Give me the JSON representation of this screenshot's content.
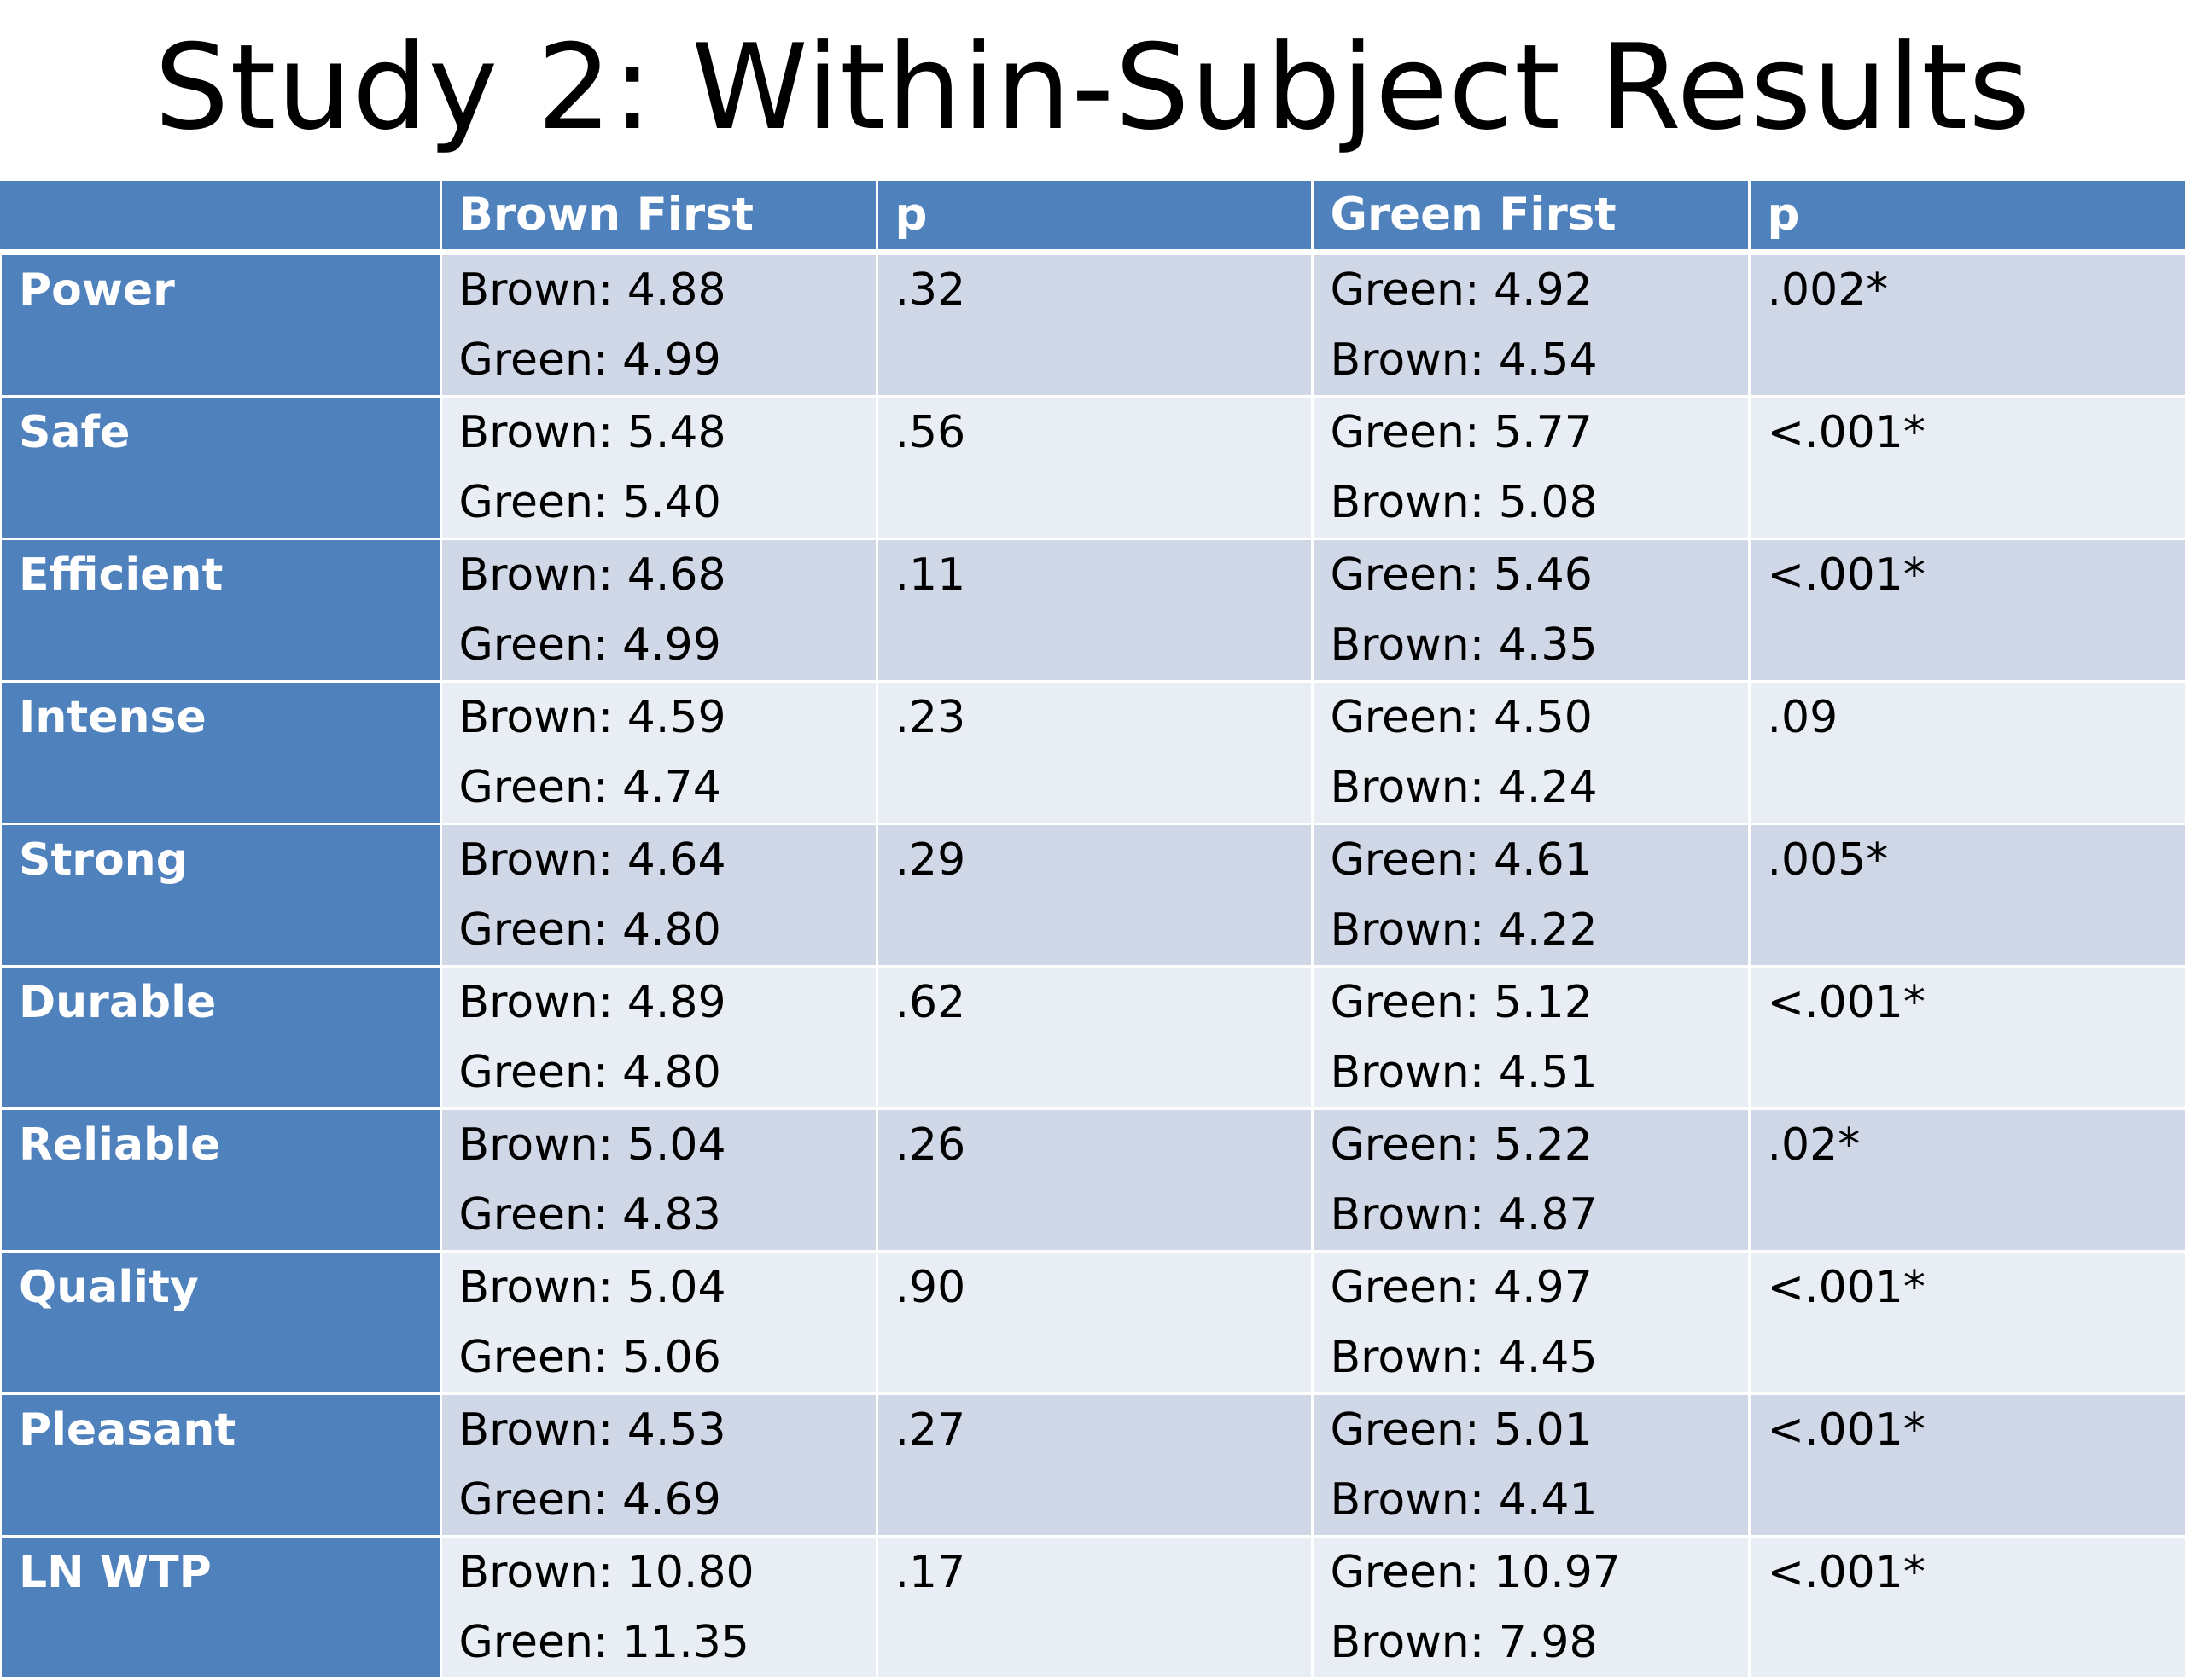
{
  "title": "Study 2: Within-Subject Results",
  "table": {
    "columns": [
      "",
      "Brown First",
      "p",
      "Green First",
      "p"
    ],
    "rows": [
      {
        "label": "Power",
        "brown_first": [
          "Brown: 4.88",
          "Green: 4.99"
        ],
        "p1": ".32",
        "green_first": [
          "Green: 4.92",
          "Brown: 4.54"
        ],
        "p2": ".002*"
      },
      {
        "label": "Safe",
        "brown_first": [
          "Brown: 5.48",
          "Green: 5.40"
        ],
        "p1": ".56",
        "green_first": [
          "Green: 5.77",
          "Brown: 5.08"
        ],
        "p2": "<.001*"
      },
      {
        "label": "Efficient",
        "brown_first": [
          "Brown: 4.68",
          "Green: 4.99"
        ],
        "p1": ".11",
        "green_first": [
          "Green: 5.46",
          "Brown: 4.35"
        ],
        "p2": "<.001*"
      },
      {
        "label": "Intense",
        "brown_first": [
          "Brown: 4.59",
          "Green: 4.74"
        ],
        "p1": ".23",
        "green_first": [
          "Green: 4.50",
          "Brown: 4.24"
        ],
        "p2": ".09"
      },
      {
        "label": "Strong",
        "brown_first": [
          "Brown: 4.64",
          "Green: 4.80"
        ],
        "p1": ".29",
        "green_first": [
          "Green: 4.61",
          "Brown: 4.22"
        ],
        "p2": ".005*"
      },
      {
        "label": "Durable",
        "brown_first": [
          "Brown: 4.89",
          "Green: 4.80"
        ],
        "p1": ".62",
        "green_first": [
          "Green: 5.12",
          "Brown: 4.51"
        ],
        "p2": "<.001*"
      },
      {
        "label": "Reliable",
        "brown_first": [
          "Brown: 5.04",
          "Green: 4.83"
        ],
        "p1": ".26",
        "green_first": [
          "Green: 5.22",
          "Brown: 4.87"
        ],
        "p2": ".02*"
      },
      {
        "label": "Quality",
        "brown_first": [
          "Brown: 5.04",
          "Green: 5.06"
        ],
        "p1": ".90",
        "green_first": [
          "Green: 4.97",
          "Brown: 4.45"
        ],
        "p2": "<.001*"
      },
      {
        "label": "Pleasant",
        "brown_first": [
          "Brown: 4.53",
          "Green: 4.69"
        ],
        "p1": ".27",
        "green_first": [
          "Green: 5.01",
          "Brown: 4.41"
        ],
        "p2": "<.001*"
      },
      {
        "label": "LN WTP",
        "brown_first": [
          "Brown: 10.80",
          "Green: 11.35"
        ],
        "p1": ".17",
        "green_first": [
          "Green: 10.97",
          "Brown: 7.98"
        ],
        "p2": "<.001*"
      }
    ]
  },
  "colors": {
    "header_blue": "#4f81bd",
    "row_band_dark": "#d0d8e8",
    "row_band_light": "#e9edf4"
  }
}
